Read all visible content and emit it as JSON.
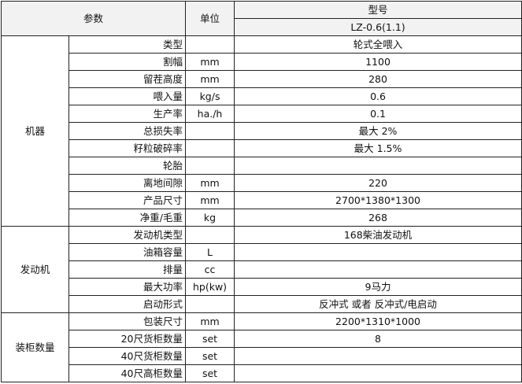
{
  "header": {
    "params_label": "参数",
    "unit_label": "单位",
    "model_label": "型号",
    "model_value": "LZ-0.6(1.1)"
  },
  "groups": [
    {
      "name": "机器",
      "rows": [
        {
          "param": "类型",
          "unit": "",
          "value": "轮式全喂入"
        },
        {
          "param": "割幅",
          "unit": "mm",
          "value": "1100"
        },
        {
          "param": "留茬高度",
          "unit": "mm",
          "value": "280"
        },
        {
          "param": "喂入量",
          "unit": "kg/s",
          "value": "0.6"
        },
        {
          "param": "生产率",
          "unit": "ha./h",
          "value": "0.1"
        },
        {
          "param": "总损失率",
          "unit": "",
          "value": "最大 2%"
        },
        {
          "param": "籽粒破碎率",
          "unit": "",
          "value": "最大 1.5%"
        },
        {
          "param": "轮胎",
          "unit": "",
          "value": ""
        },
        {
          "param": "离地间隙",
          "unit": "mm",
          "value": "220"
        },
        {
          "param": "产品尺寸",
          "unit": "mm",
          "value": "2700*1380*1300"
        },
        {
          "param": "净重/毛重",
          "unit": "kg",
          "value": "268"
        }
      ]
    },
    {
      "name": "发动机",
      "rows": [
        {
          "param": "发动机类型",
          "unit": "",
          "value": "168柴油发动机"
        },
        {
          "param": "油箱容量",
          "unit": "L",
          "value": ""
        },
        {
          "param": "排量",
          "unit": "cc",
          "value": ""
        },
        {
          "param": "最大功率",
          "unit": "hp(kw)",
          "value": "9马力"
        },
        {
          "param": "启动形式",
          "unit": "",
          "value": "反冲式 或者 反冲式/电启动"
        }
      ]
    },
    {
      "name": "装柜数量",
      "rows": [
        {
          "param": "包装尺寸",
          "unit": "mm",
          "value": "2200*1310*1000"
        },
        {
          "param": "20尺货柜数量",
          "unit": "set",
          "value": "8"
        },
        {
          "param": "40尺货柜数量",
          "unit": "set",
          "value": ""
        },
        {
          "param": "40尺高柜数量",
          "unit": "set",
          "value": ""
        }
      ]
    }
  ]
}
